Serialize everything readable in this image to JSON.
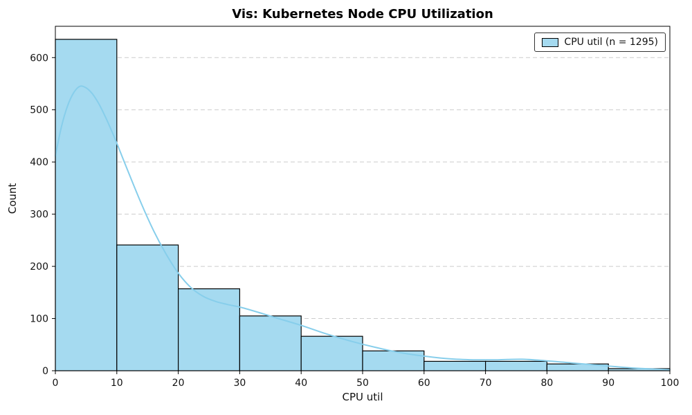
{
  "chart_data": {
    "type": "bar",
    "subtype": "histogram-with-kde",
    "title": "Vis: Kubernetes Node CPU Utilization",
    "xlabel": "CPU util",
    "ylabel": "Count",
    "legend": {
      "label": "CPU util (n = 1295)",
      "position": "upper-right"
    },
    "n": 1295,
    "bin_edges": [
      0,
      10,
      20,
      30,
      40,
      50,
      60,
      70,
      80,
      90,
      100
    ],
    "counts": [
      635,
      241,
      157,
      105,
      66,
      38,
      18,
      18,
      13,
      4
    ],
    "kde_points": [
      [
        0,
        412
      ],
      [
        1,
        468
      ],
      [
        2,
        508
      ],
      [
        3,
        533
      ],
      [
        4,
        545
      ],
      [
        5,
        542
      ],
      [
        6,
        531
      ],
      [
        7,
        513
      ],
      [
        8,
        490
      ],
      [
        9,
        464
      ],
      [
        10,
        436
      ],
      [
        12,
        377
      ],
      [
        14,
        320
      ],
      [
        16,
        268
      ],
      [
        18,
        224
      ],
      [
        20,
        187
      ],
      [
        22,
        160
      ],
      [
        24,
        143
      ],
      [
        26,
        133
      ],
      [
        28,
        127
      ],
      [
        30,
        122
      ],
      [
        33,
        112
      ],
      [
        36,
        101
      ],
      [
        40,
        87
      ],
      [
        44,
        71
      ],
      [
        48,
        57
      ],
      [
        52,
        45
      ],
      [
        56,
        35
      ],
      [
        60,
        28
      ],
      [
        64,
        23
      ],
      [
        68,
        21
      ],
      [
        72,
        21
      ],
      [
        76,
        22
      ],
      [
        80,
        19
      ],
      [
        84,
        15
      ],
      [
        88,
        11
      ],
      [
        92,
        7
      ],
      [
        96,
        4
      ],
      [
        100,
        2
      ]
    ],
    "xlim": [
      0,
      100
    ],
    "ylim": [
      0,
      660
    ],
    "xticks": [
      0,
      10,
      20,
      30,
      40,
      50,
      60,
      70,
      80,
      90,
      100
    ],
    "yticks": [
      0,
      100,
      200,
      300,
      400,
      500,
      600
    ],
    "grid": "horizontal-dashed",
    "colors": {
      "bar_fill": "#a5daf0",
      "bar_edge": "#000000",
      "kde": "#87ceeb",
      "grid": "#cccccc",
      "frame": "#000000",
      "tick_text": "#111111"
    }
  }
}
